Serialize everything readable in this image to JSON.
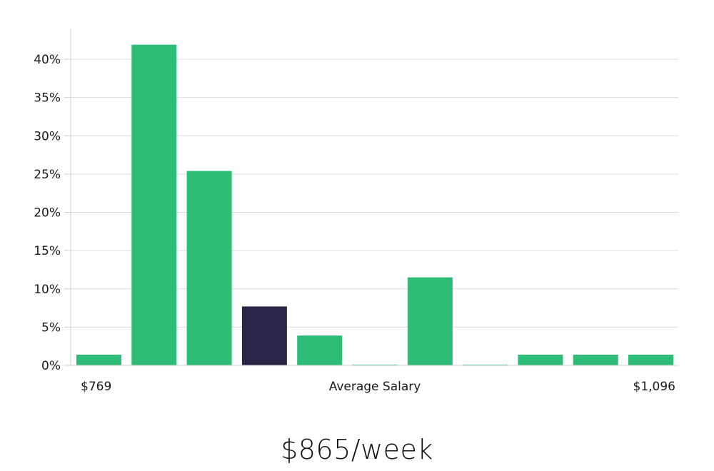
{
  "chart_data": {
    "type": "bar",
    "title": "",
    "xlabel": "Average Salary",
    "ylabel": "",
    "ylim": [
      0,
      44
    ],
    "yticks": [
      0,
      5,
      10,
      15,
      20,
      25,
      30,
      35,
      40
    ],
    "ytick_labels": [
      "0%",
      "5%",
      "10%",
      "15%",
      "20%",
      "25%",
      "30%",
      "35%",
      "40%"
    ],
    "grid": true,
    "x_range_labels": {
      "min": "$769",
      "max": "$1,096"
    },
    "categories": [
      "bin1",
      "bin2",
      "bin3",
      "bin4",
      "bin5",
      "bin6",
      "bin7",
      "bin8",
      "bin9",
      "bin10",
      "bin11"
    ],
    "values": [
      1.4,
      41.9,
      25.4,
      7.7,
      3.9,
      0.1,
      11.5,
      0.1,
      1.4,
      1.4,
      1.4
    ],
    "highlight_index": 3,
    "colors": {
      "bar": "#2dbd77",
      "highlight": "#2a2546",
      "grid": "#dcdcdc",
      "axis": "#cccccc"
    }
  },
  "labels": {
    "x_min": "$769",
    "x_center": "Average Salary",
    "x_max": "$1,096"
  },
  "summary": {
    "value": "$865/week"
  }
}
